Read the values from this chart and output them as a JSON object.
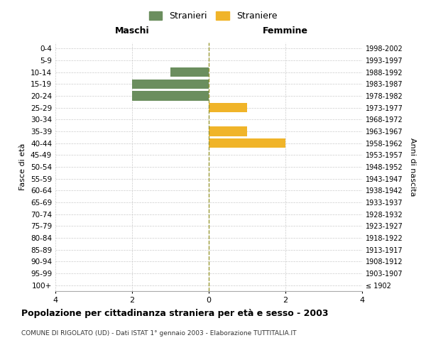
{
  "age_groups": [
    "100+",
    "95-99",
    "90-94",
    "85-89",
    "80-84",
    "75-79",
    "70-74",
    "65-69",
    "60-64",
    "55-59",
    "50-54",
    "45-49",
    "40-44",
    "35-39",
    "30-34",
    "25-29",
    "20-24",
    "15-19",
    "10-14",
    "5-9",
    "0-4"
  ],
  "birth_years": [
    "≤ 1902",
    "1903-1907",
    "1908-1912",
    "1913-1917",
    "1918-1922",
    "1923-1927",
    "1928-1932",
    "1933-1937",
    "1938-1942",
    "1943-1947",
    "1948-1952",
    "1953-1957",
    "1958-1962",
    "1963-1967",
    "1968-1972",
    "1973-1977",
    "1978-1982",
    "1983-1987",
    "1988-1992",
    "1993-1997",
    "1998-2002"
  ],
  "maschi": [
    0,
    0,
    0,
    0,
    0,
    0,
    0,
    0,
    0,
    0,
    0,
    0,
    0,
    0,
    0,
    0,
    2,
    2,
    1,
    0,
    0
  ],
  "femmine": [
    0,
    0,
    0,
    0,
    0,
    0,
    0,
    0,
    0,
    0,
    0,
    0,
    2,
    1,
    0,
    1,
    0,
    0,
    0,
    0,
    0
  ],
  "color_maschi": "#6b8e5e",
  "color_femmine": "#f0b429",
  "xlim": 4,
  "title": "Popolazione per cittadinanza straniera per età e sesso - 2003",
  "subtitle": "COMUNE DI RIGOLATO (UD) - Dati ISTAT 1° gennaio 2003 - Elaborazione TUTTITALIA.IT",
  "ylabel_left": "Fasce di età",
  "ylabel_right": "Anni di nascita",
  "legend_maschi": "Stranieri",
  "legend_femmine": "Straniere",
  "maschi_header": "Maschi",
  "femmine_header": "Femmine",
  "bg_color": "#ffffff",
  "grid_color": "#cccccc",
  "bar_height": 0.8
}
